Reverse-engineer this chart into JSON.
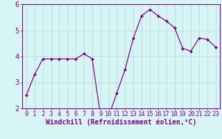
{
  "x": [
    0,
    1,
    2,
    3,
    4,
    5,
    6,
    7,
    8,
    9,
    10,
    11,
    12,
    13,
    14,
    15,
    16,
    17,
    18,
    19,
    20,
    21,
    22,
    23
  ],
  "y": [
    2.5,
    3.3,
    3.9,
    3.9,
    3.9,
    3.9,
    3.9,
    4.1,
    3.9,
    1.75,
    1.7,
    2.6,
    3.5,
    4.7,
    5.55,
    5.8,
    5.55,
    5.35,
    5.1,
    4.3,
    4.2,
    4.7,
    4.65,
    4.35
  ],
  "line_color": "#800080",
  "marker": "D",
  "marker_size": 2.2,
  "bg_color": "#d8f5f5",
  "grid_color": "#b8dede",
  "xlabel": "Windchill (Refroidissement éolien,°C)",
  "ylim": [
    2,
    6
  ],
  "xlim": [
    -0.5,
    23.5
  ],
  "yticks": [
    2,
    3,
    4,
    5,
    6
  ],
  "xticks": [
    0,
    1,
    2,
    3,
    4,
    5,
    6,
    7,
    8,
    9,
    10,
    11,
    12,
    13,
    14,
    15,
    16,
    17,
    18,
    19,
    20,
    21,
    22,
    23
  ],
  "spine_color": "#800080",
  "tick_color": "#800080",
  "label_color": "#800080",
  "xlabel_fontsize": 7.0,
  "tick_fontsize": 6.5,
  "ytick_fontsize": 7.5
}
